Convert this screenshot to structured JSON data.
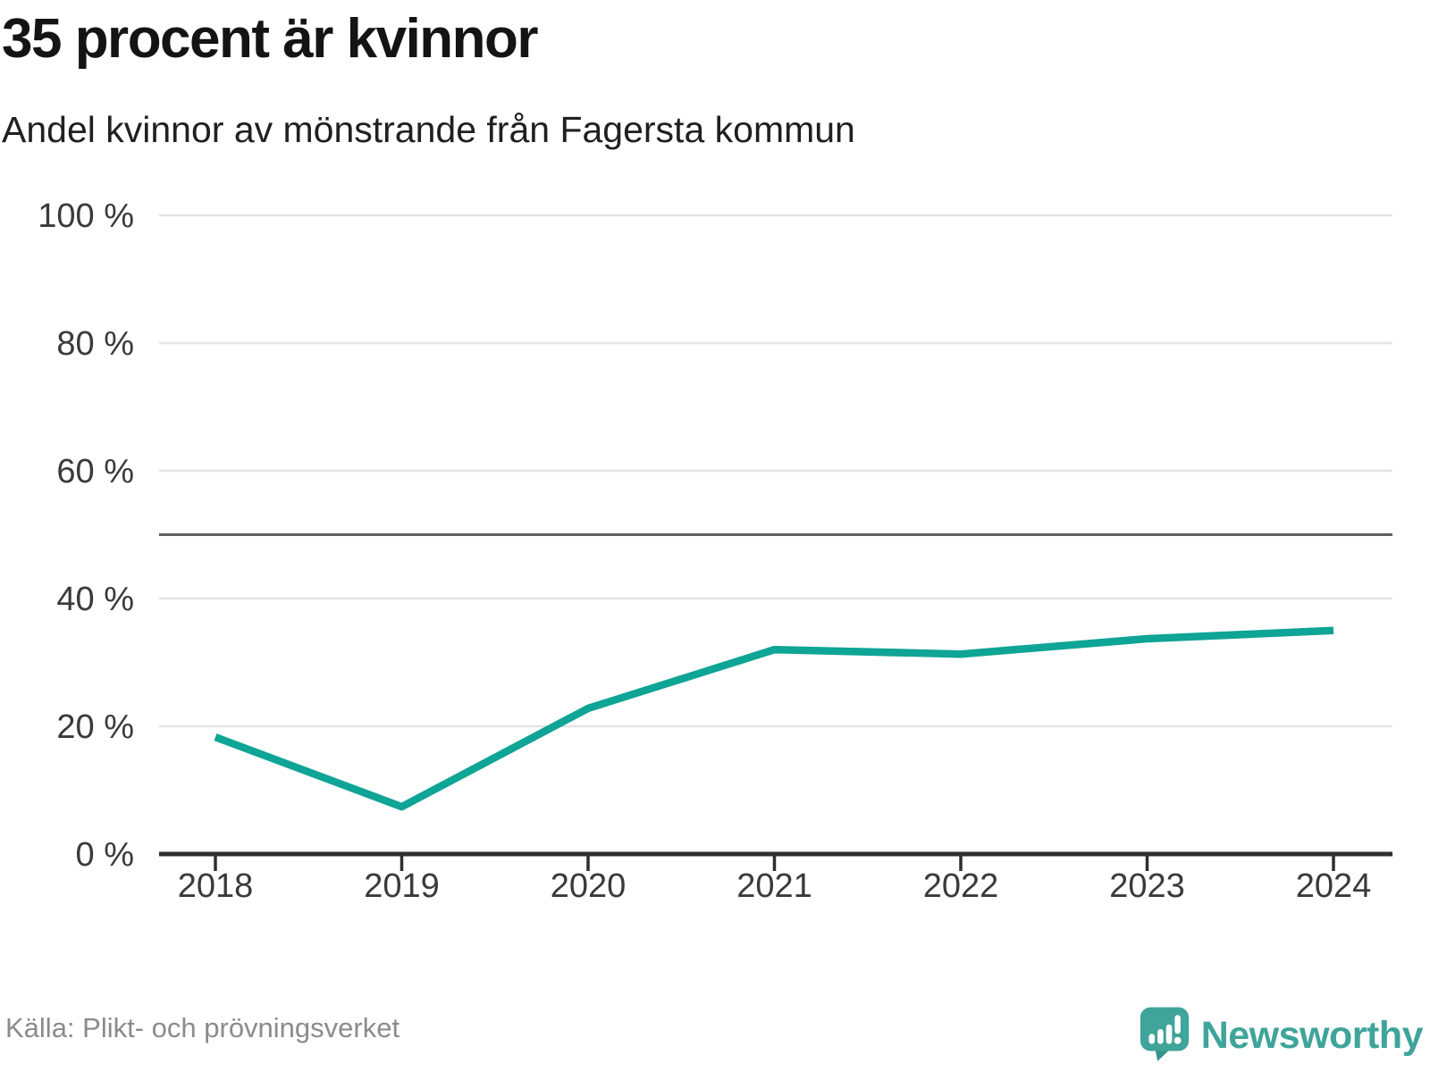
{
  "header": {
    "title": "35 procent är kvinnor",
    "subtitle": "Andel kvinnor av mönstrande från Fagersta kommun"
  },
  "footer": {
    "source": "Källa: Plikt- och prövningsverket",
    "brand_name": "Newsworthy"
  },
  "colors": {
    "line": "#0ea496",
    "brand": "#3fa49a",
    "brand_tail": "#35948c",
    "grid": "#e4e4e4",
    "reference_line": "#5f5f5f",
    "axis": "#2e2e2e",
    "axis_text": "#3a3a3a",
    "source_text": "#8b8b8b"
  },
  "chart_data": {
    "type": "line",
    "title": "35 procent är kvinnor",
    "subtitle": "Andel kvinnor av mönstrande från Fagersta kommun",
    "x": [
      2018,
      2019,
      2020,
      2021,
      2022,
      2023,
      2024
    ],
    "series": [
      {
        "name": "Andel kvinnor av mönstrande",
        "values": [
          18.3,
          7.4,
          22.8,
          32.0,
          31.3,
          33.7,
          35.0
        ]
      }
    ],
    "xlabel": "",
    "ylabel": "",
    "ylim": [
      0,
      100
    ],
    "yticks": [
      0,
      20,
      40,
      60,
      80,
      100
    ],
    "ytick_format": "{v} %",
    "reference_line": 50,
    "grid": "horizontal",
    "legend": "none"
  }
}
